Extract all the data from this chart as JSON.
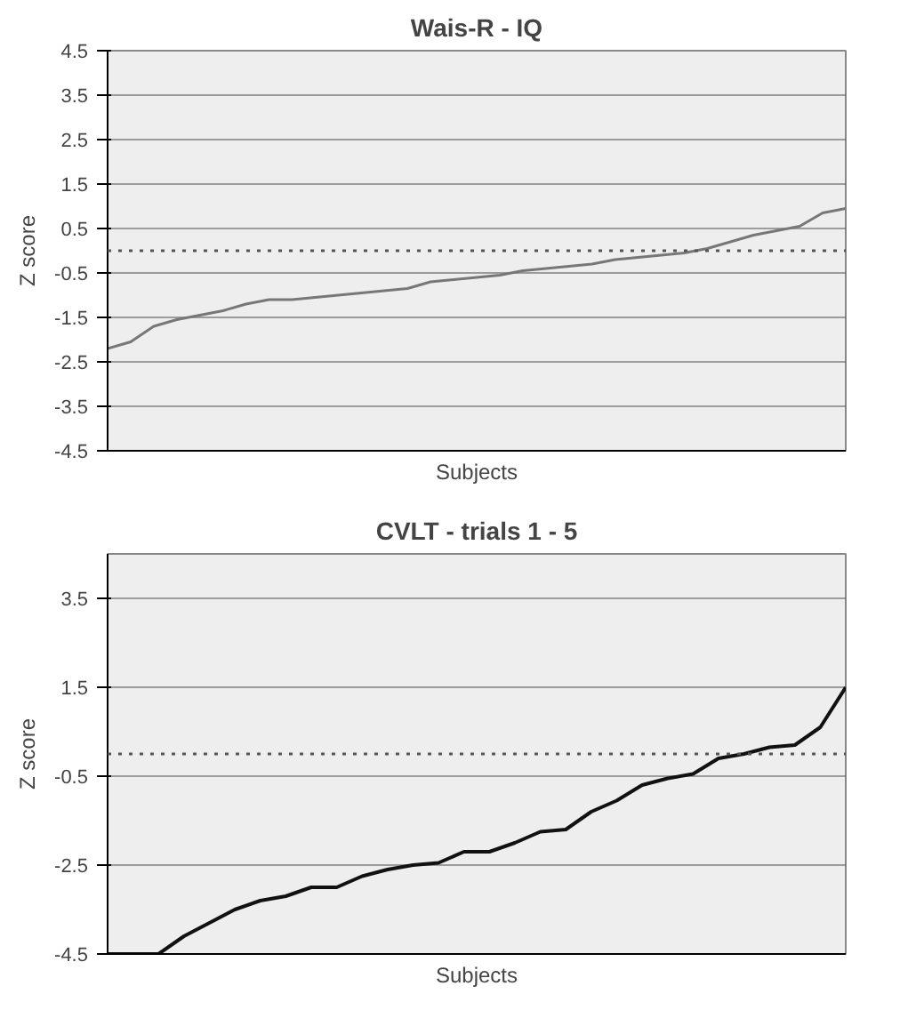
{
  "chart_data": [
    {
      "type": "line",
      "title": "Wais-R - IQ",
      "ylabel": "Z score",
      "xlabel": "Subjects",
      "categories": [
        null,
        null,
        null,
        null,
        null,
        null,
        null,
        null,
        null,
        null,
        null,
        null,
        null,
        null,
        null,
        null,
        null,
        null,
        null,
        null,
        null,
        null,
        null,
        null,
        null,
        null,
        null,
        null,
        null,
        null,
        null,
        null,
        null
      ],
      "series": [
        {
          "color": "#777777",
          "values": [
            -2.2,
            -2.05,
            -1.7,
            -1.55,
            -1.45,
            -1.35,
            -1.2,
            -1.1,
            -1.1,
            -1.05,
            -1.0,
            -0.95,
            -0.9,
            -0.85,
            -0.7,
            -0.65,
            -0.6,
            -0.55,
            -0.45,
            -0.4,
            -0.35,
            -0.3,
            -0.2,
            -0.15,
            -0.1,
            -0.05,
            0.05,
            0.2,
            0.35,
            0.45,
            0.55,
            0.85,
            0.95
          ]
        }
      ],
      "ylim": [
        -4.5,
        4.5
      ],
      "yticks": [
        -4.5,
        -3.5,
        -2.5,
        -1.5,
        -0.5,
        0.5,
        1.5,
        2.5,
        3.5,
        4.5
      ],
      "ref_lines": [
        {
          "axis": "y",
          "value": 0,
          "line_style": "dotted",
          "color": "#555555"
        }
      ],
      "grid": "y",
      "tick_labels": "y",
      "line_style": "solid",
      "marker": "none"
    },
    {
      "type": "line",
      "title": "CVLT - trials 1 - 5",
      "ylabel": "Z score",
      "xlabel": "Subjects",
      "categories": [
        null,
        null,
        null,
        null,
        null,
        null,
        null,
        null,
        null,
        null,
        null,
        null,
        null,
        null,
        null,
        null,
        null,
        null,
        null,
        null,
        null,
        null,
        null,
        null,
        null,
        null,
        null,
        null,
        null,
        null
      ],
      "series": [
        {
          "color": "#111111",
          "values": [
            -4.5,
            -4.5,
            -4.5,
            -4.1,
            -3.8,
            -3.5,
            -3.3,
            -3.2,
            -3.0,
            -3.0,
            -2.75,
            -2.6,
            -2.5,
            -2.45,
            -2.2,
            -2.2,
            -2.0,
            -1.75,
            -1.7,
            -1.3,
            -1.05,
            -0.7,
            -0.55,
            -0.45,
            -0.1,
            0.0,
            0.15,
            0.2,
            0.6,
            1.5
          ]
        }
      ],
      "ylim": [
        -4.5,
        4.5
      ],
      "yticks": [
        -4.5,
        -2.5,
        -0.5,
        1.5,
        3.5
      ],
      "ref_lines": [
        {
          "axis": "y",
          "value": 0,
          "line_style": "dotted",
          "color": "#555555"
        }
      ],
      "grid": "y",
      "tick_labels": "y",
      "line_style": "solid",
      "marker": "none"
    }
  ]
}
